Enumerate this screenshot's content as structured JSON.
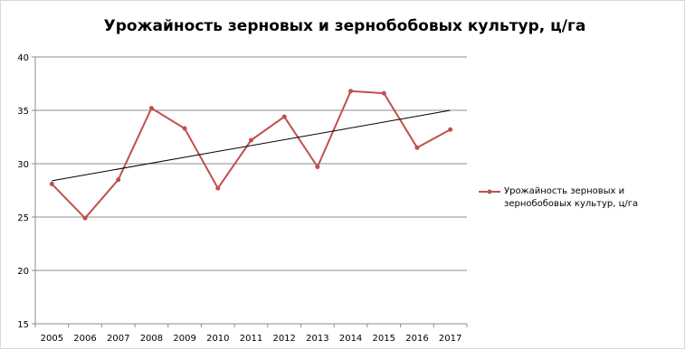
{
  "chart_data": {
    "type": "line",
    "title": "Урожайность зерновых и зернобобовых культур, ц/га",
    "xlabel": "",
    "ylabel": "",
    "categories": [
      "2005",
      "2006",
      "2007",
      "2008",
      "2009",
      "2010",
      "2011",
      "2012",
      "2013",
      "2014",
      "2015",
      "2016",
      "2017"
    ],
    "series": [
      {
        "name": "Урожайность зерновых и зернобобовых культур, ц/га",
        "values": [
          28.1,
          24.9,
          28.5,
          35.2,
          33.3,
          27.7,
          32.2,
          34.4,
          29.7,
          36.8,
          36.6,
          31.5,
          33.2
        ],
        "color": "#c0504d"
      }
    ],
    "trendline": {
      "type": "linear",
      "start": 28.4,
      "end": 35.0,
      "color": "#000000"
    },
    "ylim": [
      15,
      40
    ],
    "yticks": [
      15,
      20,
      25,
      30,
      35,
      40
    ],
    "grid": true,
    "legend_position": "right"
  }
}
